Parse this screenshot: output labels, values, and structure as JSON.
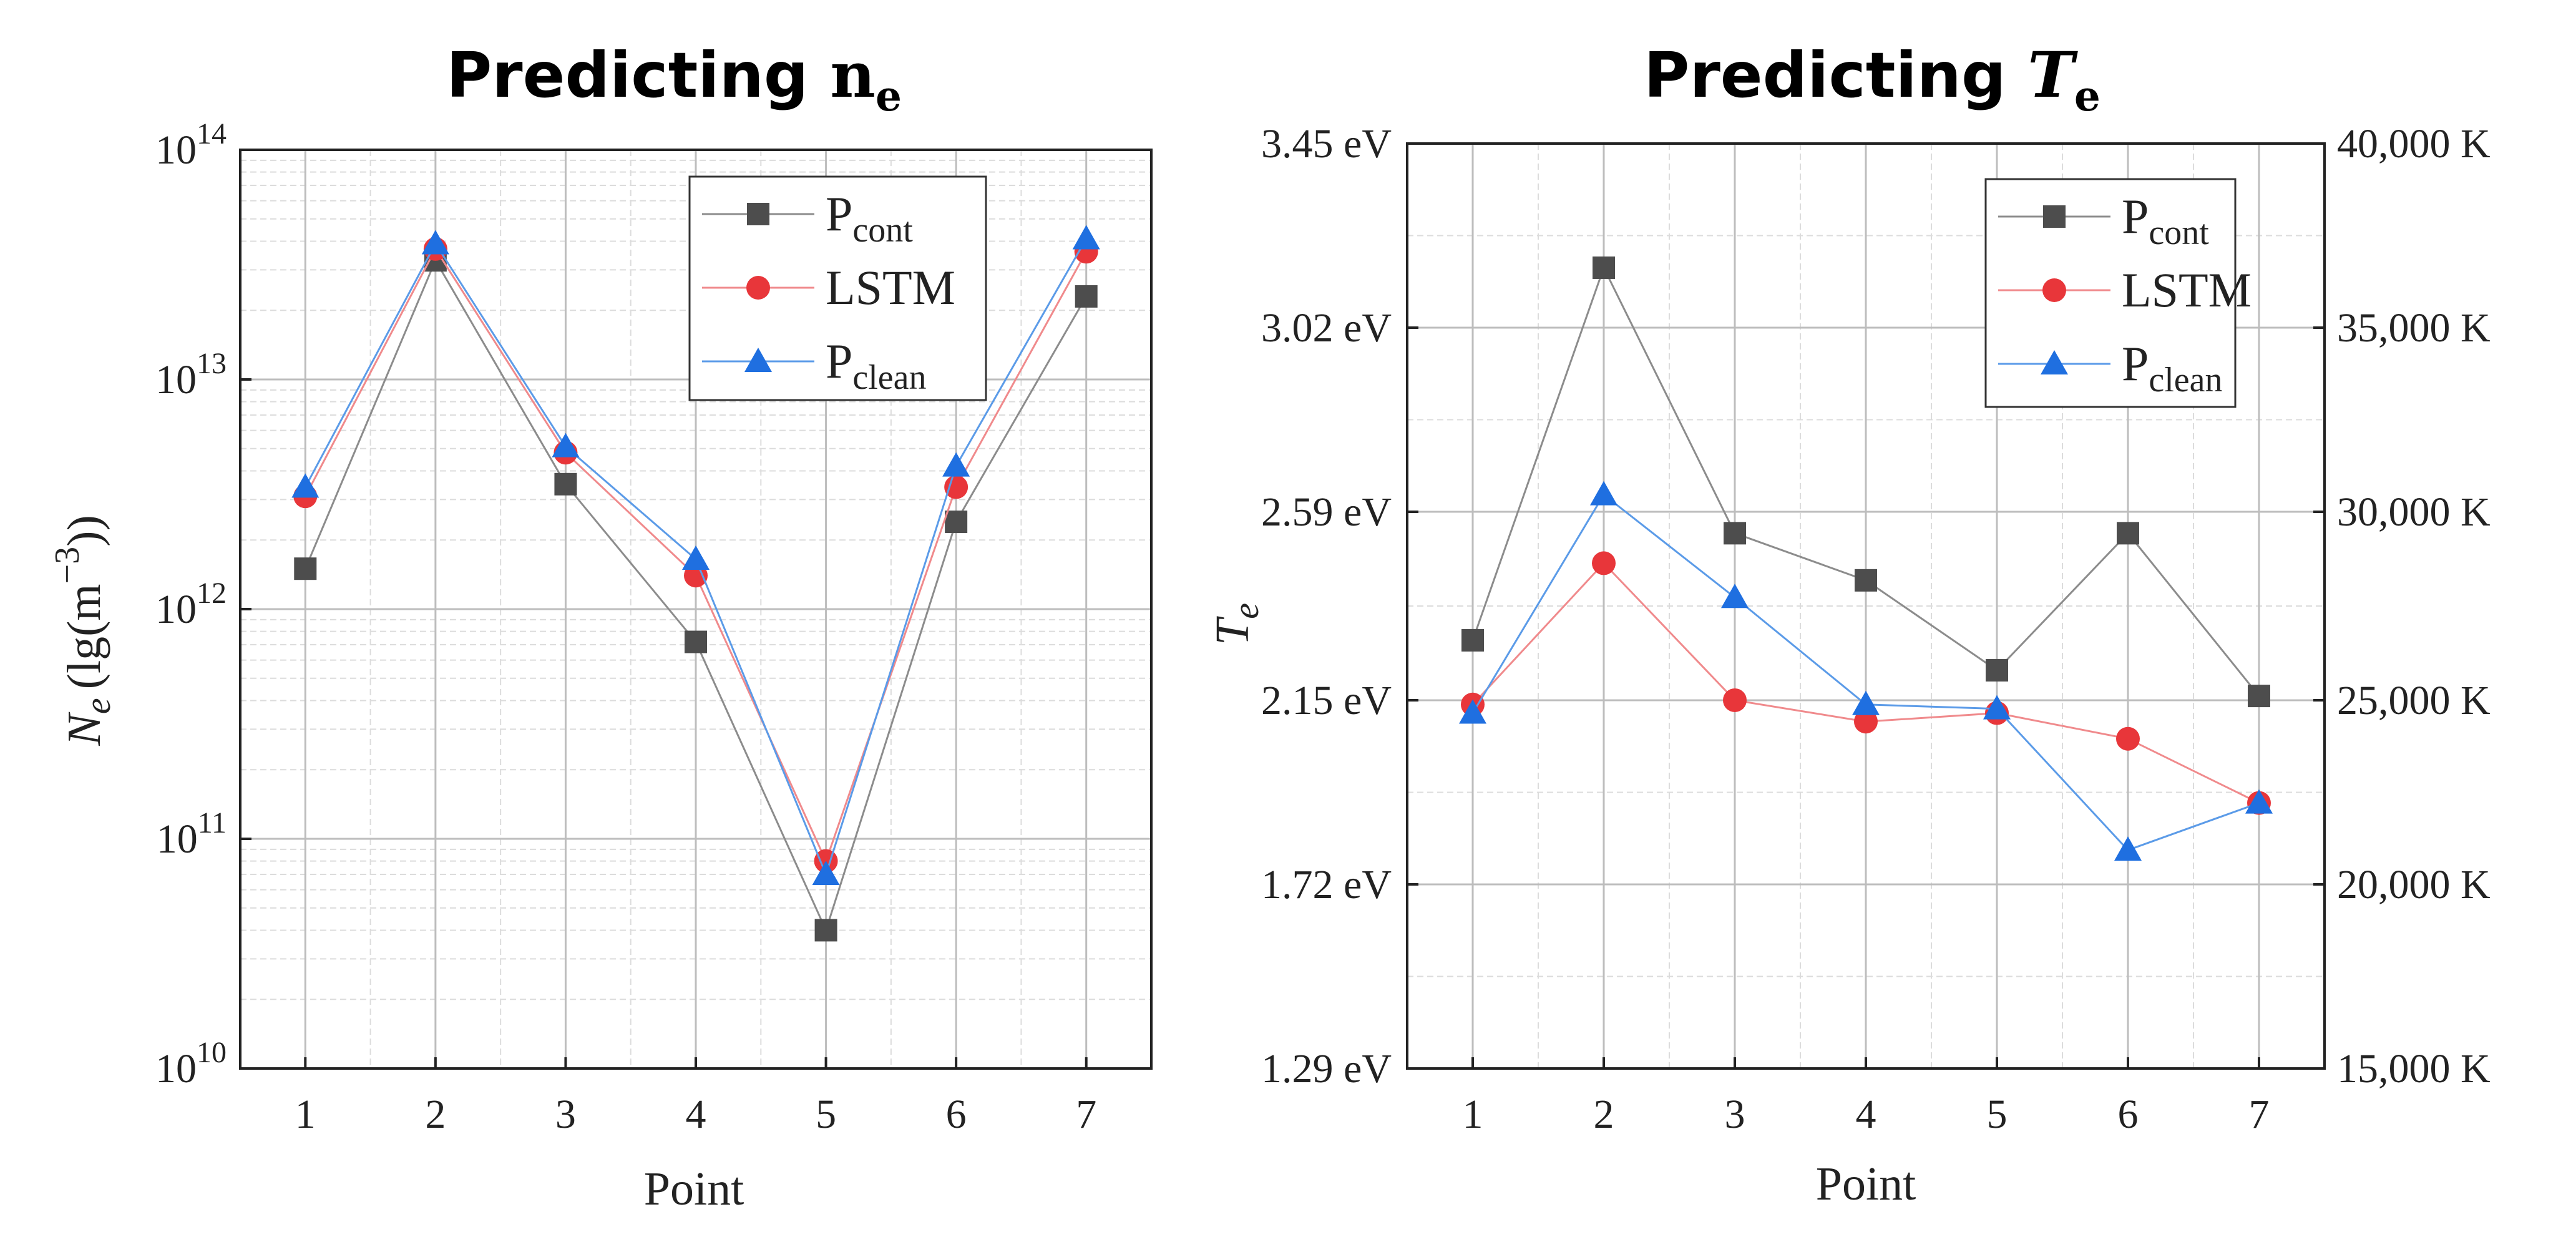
{
  "chart_data": [
    {
      "type": "line",
      "title": "Predicting",
      "title_symbol": "n",
      "title_subscript": "e",
      "xlabel": "Point",
      "ylabel": "N",
      "ylabel_subscript": "e",
      "ylabel_unit": "(lg(m",
      "ylabel_unit_exp": "−3",
      "ylabel_unit_close": "))",
      "y_scale": "log",
      "ylim": [
        10000000000.0,
        100000000000000.0
      ],
      "yticks": [
        {
          "value": 10000000000.0,
          "base": "10",
          "exp": "10"
        },
        {
          "value": 100000000000.0,
          "base": "10",
          "exp": "11"
        },
        {
          "value": 1000000000000.0,
          "base": "10",
          "exp": "12"
        },
        {
          "value": 10000000000000.0,
          "base": "10",
          "exp": "13"
        },
        {
          "value": 100000000000000.0,
          "base": "10",
          "exp": "14"
        }
      ],
      "x": [
        1,
        2,
        3,
        4,
        5,
        6,
        7
      ],
      "xlim": [
        0.5,
        7.5
      ],
      "grid": true,
      "legend_position": "top-right",
      "series": [
        {
          "name": "P",
          "sub": "cont",
          "marker": "square",
          "color": "#4d4d4d",
          "line_color": "#8c8c8c",
          "values": [
            1500000000000.0,
            33000000000000.0,
            3500000000000.0,
            720000000000.0,
            40000000000.0,
            2400000000000.0,
            23000000000000.0
          ]
        },
        {
          "name": "LSTM",
          "sub": "",
          "marker": "circle",
          "color": "#e8363a",
          "line_color": "#f08a8c",
          "values": [
            3100000000000.0,
            37000000000000.0,
            4800000000000.0,
            1400000000000.0,
            80000000000.0,
            3400000000000.0,
            36000000000000.0
          ]
        },
        {
          "name": "P",
          "sub": "clean",
          "marker": "triangle",
          "color": "#1f6fe0",
          "line_color": "#5b9be8",
          "values": [
            3400000000000.0,
            39000000000000.0,
            5100000000000.0,
            1650000000000.0,
            70000000000.0,
            4200000000000.0,
            41000000000000.0
          ]
        }
      ]
    },
    {
      "type": "line",
      "title": "Predicting",
      "title_symbol": "T",
      "title_subscript": "e",
      "xlabel": "Point",
      "ylabel": "T",
      "ylabel_subscript": "e",
      "ylim": [
        1.29,
        3.45
      ],
      "yticks": [
        "1.29 eV",
        "1.72 eV",
        "2.15 eV",
        "2.59 eV",
        "3.02 eV",
        "3.45 eV"
      ],
      "ytick_values": [
        1.29,
        1.72,
        2.15,
        2.59,
        3.02,
        3.45
      ],
      "y2ticks": [
        "15,000 K",
        "20,000 K",
        "25,000 K",
        "30,000 K",
        "35,000 K",
        "40,000 K"
      ],
      "x": [
        1,
        2,
        3,
        4,
        5,
        6,
        7
      ],
      "xlim": [
        0.5,
        7.5
      ],
      "grid": true,
      "legend_position": "top-right",
      "series": [
        {
          "name": "P",
          "sub": "cont",
          "marker": "square",
          "color": "#4d4d4d",
          "line_color": "#8c8c8c",
          "values": [
            2.29,
            3.16,
            2.54,
            2.43,
            2.22,
            2.54,
            2.16
          ]
        },
        {
          "name": "LSTM",
          "sub": "",
          "marker": "circle",
          "color": "#e8363a",
          "line_color": "#f08a8c",
          "values": [
            2.14,
            2.47,
            2.15,
            2.1,
            2.12,
            2.06,
            1.91
          ]
        },
        {
          "name": "P",
          "sub": "clean",
          "marker": "triangle",
          "color": "#1f6fe0",
          "line_color": "#5b9be8",
          "values": [
            2.12,
            2.63,
            2.39,
            2.14,
            2.13,
            1.8,
            1.91
          ]
        }
      ]
    }
  ]
}
